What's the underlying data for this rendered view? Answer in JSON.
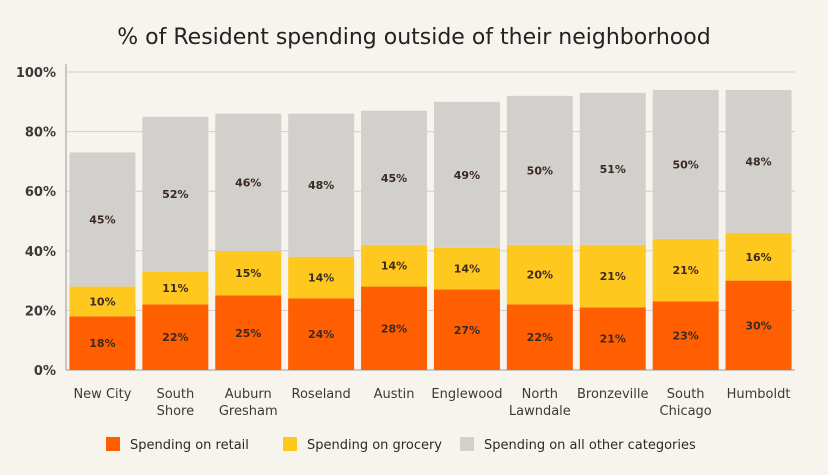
{
  "chart_data": {
    "type": "bar",
    "stacked": true,
    "title": "% of Resident spending outside of their neighborhood",
    "categories": [
      [
        "New City"
      ],
      [
        "South",
        "Shore"
      ],
      [
        "Auburn",
        "Gresham"
      ],
      [
        "Roseland"
      ],
      [
        "Austin"
      ],
      [
        "Englewood"
      ],
      [
        "North",
        "Lawndale"
      ],
      [
        "Bronzeville"
      ],
      [
        "South",
        "Chicago"
      ],
      [
        "Humboldt"
      ]
    ],
    "series": [
      {
        "name": "Spending on retail",
        "color": "#ff5f00",
        "values": [
          18,
          22,
          25,
          24,
          28,
          27,
          22,
          21,
          23,
          30
        ],
        "labels": [
          "18%",
          "22%",
          "25%",
          "24%",
          "28%",
          "27%",
          "22%",
          "21%",
          "23%",
          "30%"
        ]
      },
      {
        "name": "Spending on grocery",
        "color": "#ffc81e",
        "values": [
          10,
          11,
          15,
          14,
          14,
          14,
          20,
          21,
          21,
          16
        ],
        "labels": [
          "10%",
          "11%",
          "15%",
          "14%",
          "14%",
          "14%",
          "20%",
          "21%",
          "21%",
          "16%"
        ]
      },
      {
        "name": "Spending on all other categories",
        "color": "#d2d0cd",
        "values": [
          45,
          52,
          46,
          48,
          45,
          49,
          50,
          51,
          50,
          48
        ],
        "labels": [
          "45%",
          "52%",
          "46%",
          "48%",
          "45%",
          "49%",
          "50%",
          "51%",
          "50%",
          "48%"
        ]
      }
    ],
    "ylim": [
      0,
      100
    ],
    "yticks": [
      0,
      20,
      40,
      60,
      80,
      100
    ],
    "ytick_labels": [
      "0%",
      "20%",
      "40%",
      "60%",
      "80%",
      "100%"
    ],
    "xlabel": "",
    "ylabel": "",
    "grid": true,
    "legend_position": "bottom",
    "colors": {
      "background": "#f7f4ee",
      "gridline": "#cfcfcf",
      "axis_text": "#3a3a3a",
      "label_text": "#3b2a22"
    }
  }
}
